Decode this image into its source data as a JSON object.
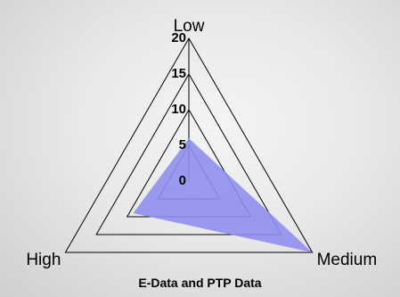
{
  "chart_data": {
    "type": "radar",
    "title": "E-Data and PTP Data",
    "categories": [
      "Low",
      "Medium",
      "High"
    ],
    "rlim": [
      0,
      20
    ],
    "ticks": [
      0,
      5,
      10,
      15,
      20
    ],
    "tick_labels": [
      "0",
      "5",
      "10",
      "15",
      "20"
    ],
    "series": [
      {
        "values": [
          6,
          20,
          9
        ],
        "color": "#8f8ff0",
        "fill_opacity": 0.9
      }
    ],
    "grid": true,
    "legend": "none"
  },
  "colors": {
    "grid": "#000000",
    "series_fill": "#8f8ff0",
    "background_center": "#f4f4f4",
    "background_edge": "#cfcfcf"
  }
}
